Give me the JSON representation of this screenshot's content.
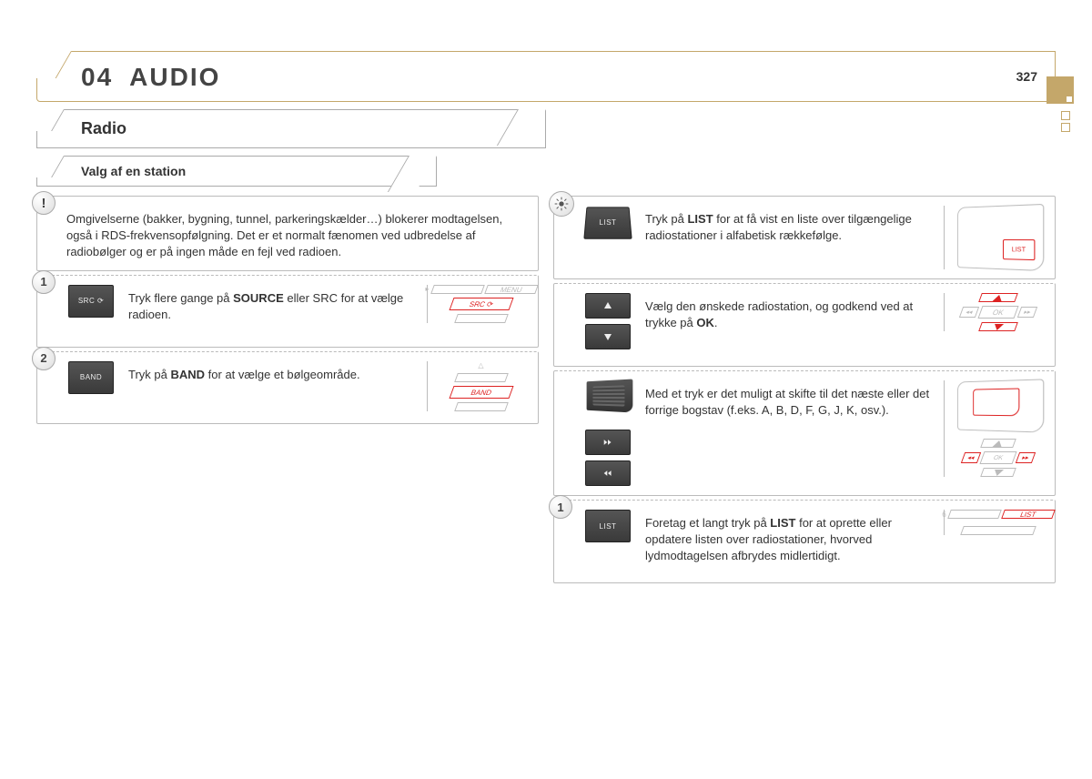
{
  "page_number": "327",
  "chapter": {
    "number": "04",
    "title": "AUDIO"
  },
  "section": "Radio",
  "subsection": "Valg af en station",
  "colors": {
    "accent_tan": "#c4a76a",
    "accent_red": "#d22222",
    "button_dark": "#444444",
    "border_gray": "#bbbbbb",
    "text": "#333333"
  },
  "left": {
    "info": {
      "text": "Omgivelserne (bakker, bygning, tunnel, parkeringskælder…) blokerer modtagelsen, også i RDS-frekvensopfølgning. Det er et normalt fænomen ved udbredelse af radiobølger og er på ingen måde en fejl ved radioen."
    },
    "steps": [
      {
        "n": "1",
        "button_label": "SRC ⟳",
        "text_pre": "Tryk flere gange på ",
        "text_bold1": "SOURCE",
        "text_mid": " eller SRC for at vælge radioen.",
        "diagram_labels": {
          "top": "MENU",
          "highlight": "SRC ⟳"
        }
      },
      {
        "n": "2",
        "button_label": "BAND",
        "text_pre": "Tryk på ",
        "text_bold1": "BAND",
        "text_mid": " for at vælge et bølgeområde.",
        "diagram_labels": {
          "highlight": "BAND"
        }
      }
    ]
  },
  "right": {
    "rows": [
      {
        "icon": "tip",
        "button_label": "LIST",
        "text": "Tryk på <b>LIST</b> for at få vist en liste over tilgængelige radiostationer i alfabetisk rækkefølge.",
        "diagram": "console-list"
      },
      {
        "buttons": [
          "up",
          "down"
        ],
        "text": "Vælg den ønskede radiostation, og godkend ved at trykke på <b>OK</b>.",
        "diagram": "ok-stack"
      },
      {
        "speaker": true,
        "buttons": [
          "fwd",
          "back"
        ],
        "text": "Med et tryk er det muligt at skifte til det næste eller det forrige bogstav (f.eks. A, B, D, F, G, J, K, osv.).",
        "diagram": "console-speaker"
      },
      {
        "n": "1",
        "button_label": "LIST",
        "text": "Foretag et langt tryk på <b>LIST</b> for at oprette eller opdatere listen over radiostationer, hvorved lydmodtagelsen afbrydes midlertidigt.",
        "diagram": "list-row"
      }
    ]
  }
}
